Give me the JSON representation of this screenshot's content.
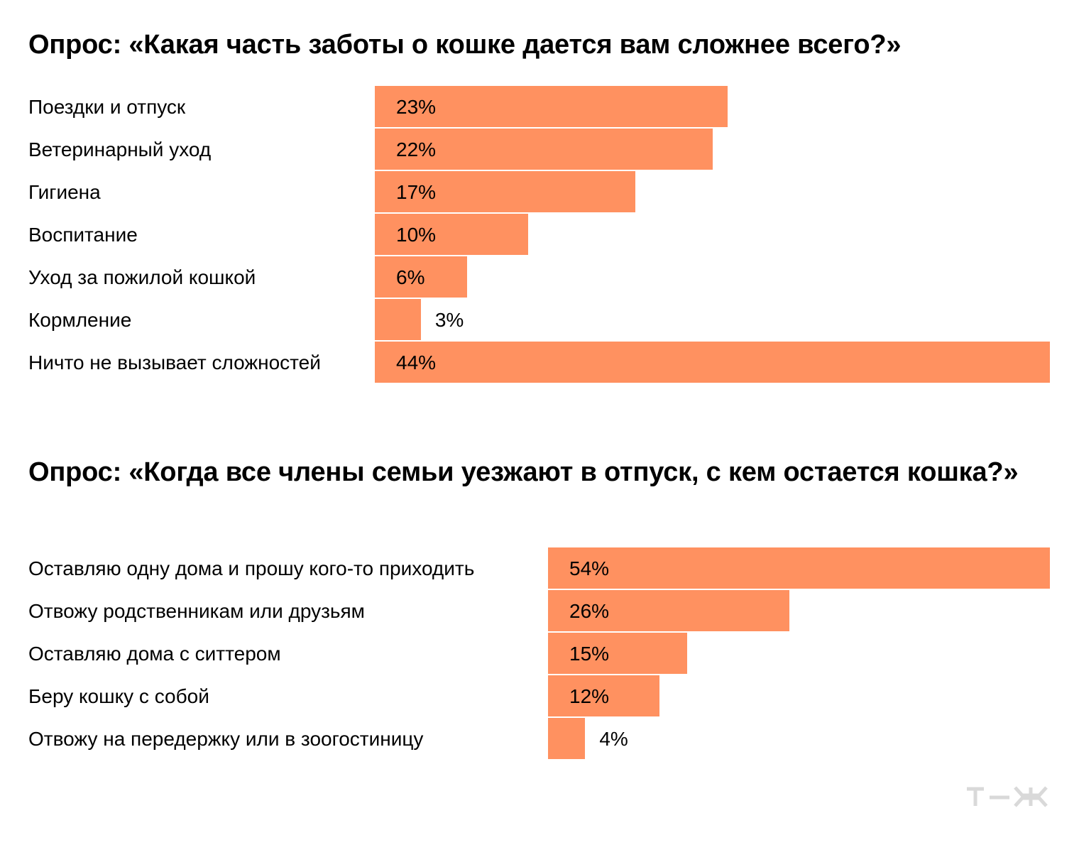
{
  "chart_data": [
    {
      "type": "bar",
      "orientation": "horizontal",
      "title": "Опрос: «Какая часть заботы о кошке дается вам сложнее всего?»",
      "categories": [
        "Поездки и отпуск",
        "Ветеринарный уход",
        "Гигиена",
        "Воспитание",
        "Уход за пожилой кошкой",
        "Кормление",
        "Ничто не вызывает сложностей"
      ],
      "values": [
        23,
        22,
        17,
        10,
        6,
        3,
        44
      ],
      "value_labels": [
        "23%",
        "22%",
        "17%",
        "10%",
        "6%",
        "3%",
        "44%"
      ],
      "unit": "%",
      "xlim": [
        0,
        44
      ],
      "color": "#ff9160"
    },
    {
      "type": "bar",
      "orientation": "horizontal",
      "title": "Опрос: «Когда все члены семьи уезжают в отпуск, с кем остается кошка?»",
      "categories": [
        "Оставляю одну дома и прошу кого-то приходить",
        "Отвожу родственникам или друзьям",
        "Оставляю дома с ситтером",
        "Беру кошку с собой",
        "Отвожу на передержку или в зоогостиницу"
      ],
      "values": [
        54,
        26,
        15,
        12,
        4
      ],
      "value_labels": [
        "54%",
        "26%",
        "15%",
        "12%",
        "4%"
      ],
      "unit": "%",
      "xlim": [
        0,
        54
      ],
      "color": "#ff9160"
    }
  ],
  "logo": {
    "icon": "tzh-logo-icon",
    "color": "#d9d9d9"
  }
}
